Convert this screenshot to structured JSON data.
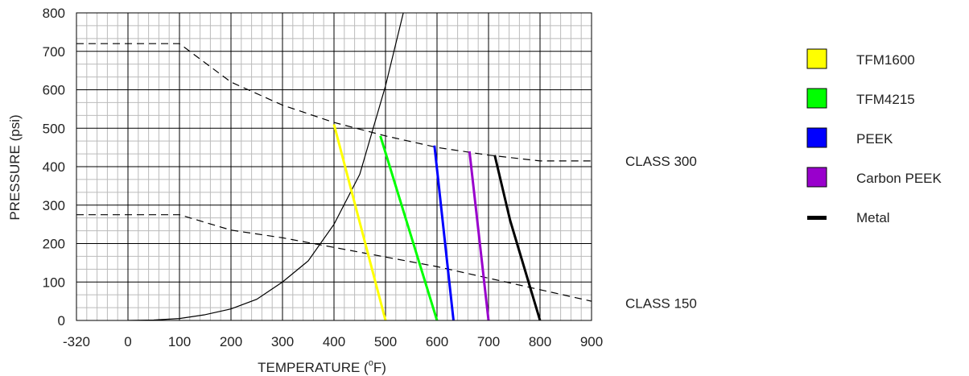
{
  "chart_data": {
    "type": "line",
    "xlabel": "TEMPERATURE (",
    "xlabel_sup": "o",
    "xlabel_end": "F)",
    "ylabel": "PRESSURE (psi)",
    "xlim": [
      -320,
      900
    ],
    "ylim": [
      0,
      800
    ],
    "x_ticks": [
      -320,
      0,
      100,
      200,
      300,
      400,
      500,
      600,
      700,
      800,
      900
    ],
    "y_ticks": [
      0,
      100,
      200,
      300,
      400,
      500,
      600,
      700,
      800
    ],
    "grid": true,
    "class_labels": [
      {
        "text": "CLASS 300",
        "y": 415
      },
      {
        "text": "CLASS 150",
        "y": 45
      }
    ],
    "class_curves": [
      {
        "label": "CLASS 300",
        "x": [
          -320,
          100,
          200,
          300,
          400,
          500,
          600,
          700,
          800,
          900
        ],
        "y": [
          720,
          720,
          620,
          560,
          515,
          480,
          450,
          430,
          415,
          415
        ]
      },
      {
        "label": "CLASS 150",
        "x": [
          -320,
          100,
          200,
          300,
          400,
          500,
          600,
          700,
          800,
          900
        ],
        "y": [
          275,
          275,
          235,
          215,
          190,
          165,
          140,
          110,
          80,
          50
        ]
      }
    ],
    "vapor_curve": {
      "x": [
        0,
        50,
        100,
        150,
        200,
        250,
        300,
        350,
        400,
        450,
        500,
        540
      ],
      "y": [
        0,
        1,
        5,
        15,
        30,
        55,
        100,
        155,
        250,
        380,
        610,
        830
      ]
    },
    "series": [
      {
        "name": "TFM1600",
        "color": "#ffff00",
        "x": [
          400,
          500
        ],
        "y": [
          510,
          0
        ]
      },
      {
        "name": "TFM4215",
        "color": "#00ff00",
        "x": [
          490,
          600
        ],
        "y": [
          480,
          0
        ]
      },
      {
        "name": "PEEK",
        "color": "#0000ff",
        "x": [
          595,
          632
        ],
        "y": [
          455,
          0
        ]
      },
      {
        "name": "Carbon PEEK",
        "color": "#9900cc",
        "x": [
          663,
          700
        ],
        "y": [
          440,
          0
        ]
      },
      {
        "name": "Metal",
        "color": "#000000",
        "x": [
          712,
          742,
          800
        ],
        "y": [
          430,
          260,
          0
        ]
      }
    ]
  }
}
